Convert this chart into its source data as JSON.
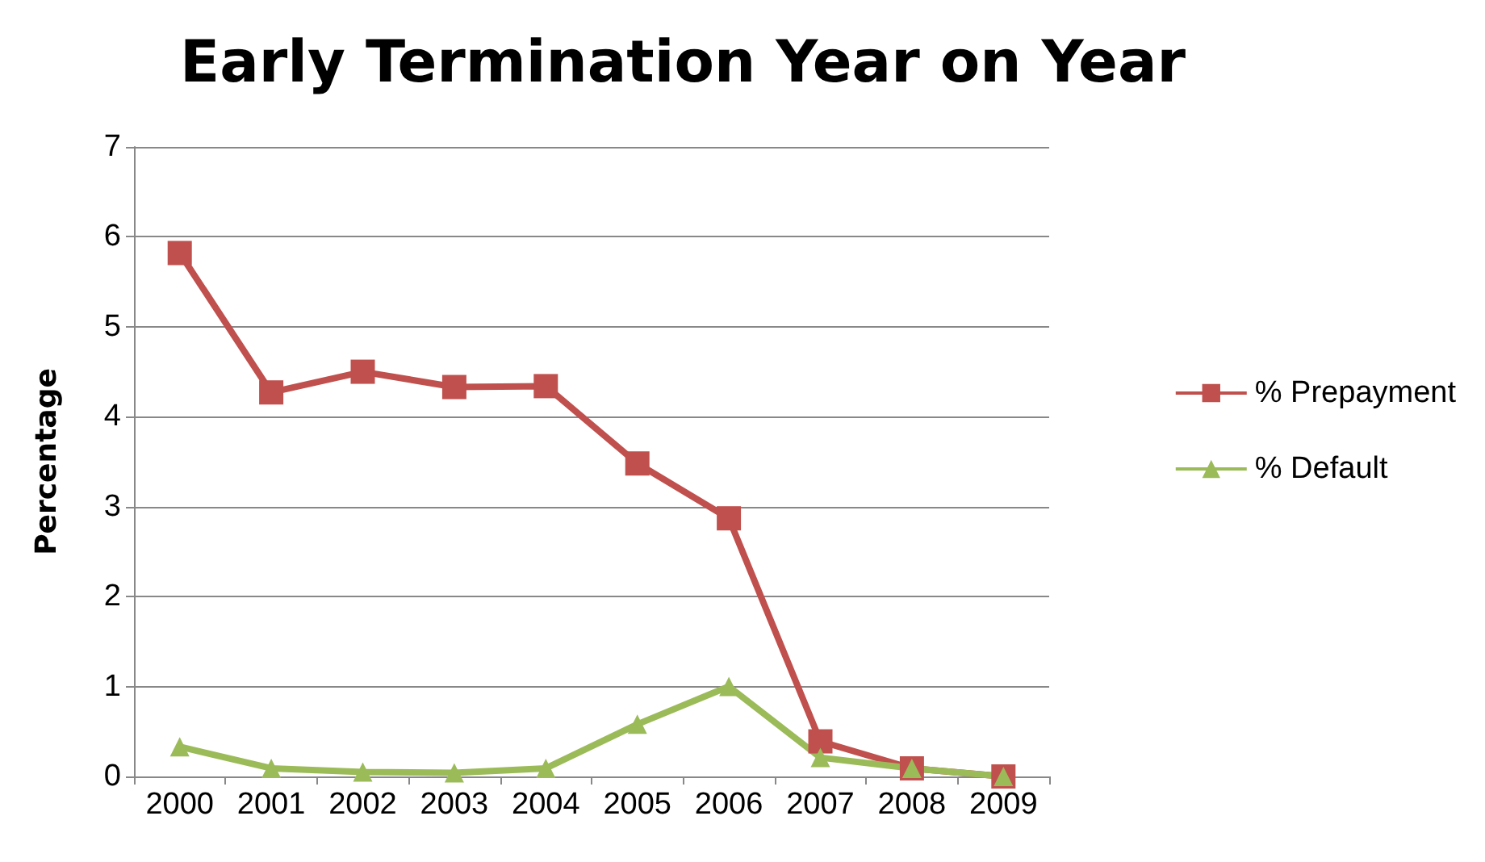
{
  "chart_data": {
    "type": "line",
    "title": "Early Termination Year on Year",
    "ylabel": "Percentage",
    "categories": [
      "2000",
      "2001",
      "2002",
      "2003",
      "2004",
      "2005",
      "2006",
      "2007",
      "2008",
      "2009"
    ],
    "series": [
      {
        "name": "% Prepayment",
        "color": "#c0504d",
        "marker": "square",
        "values": [
          5.82,
          4.27,
          4.5,
          4.33,
          4.34,
          3.48,
          2.87,
          0.39,
          0.09,
          0
        ]
      },
      {
        "name": "% Default",
        "color": "#9bbb59",
        "marker": "triangle",
        "values": [
          0.33,
          0.09,
          0.05,
          0.04,
          0.09,
          0.58,
          1.0,
          0.21,
          0.09,
          0
        ]
      }
    ],
    "ylim": [
      0,
      7
    ],
    "yticks": [
      0,
      1,
      2,
      3,
      4,
      5,
      6,
      7
    ],
    "grid": "y",
    "legend": "right"
  }
}
